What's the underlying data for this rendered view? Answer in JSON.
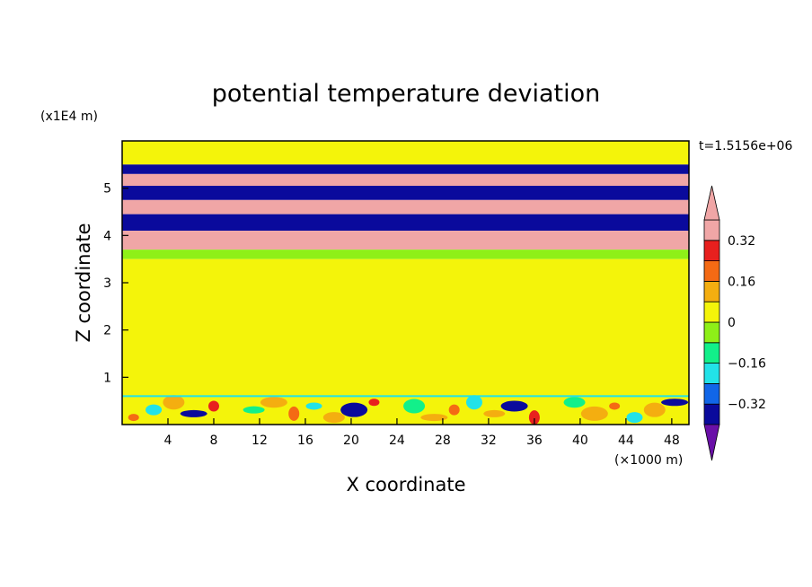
{
  "chart_data": {
    "type": "heatmap",
    "title": "potential temperature deviation",
    "xlabel": "X coordinate",
    "ylabel": "Z coordinate",
    "x_unit": "(×1000 m)",
    "y_unit": "(x1E4 m)",
    "time_label": "t=1.5156e+06",
    "xlim": [
      0,
      49.5
    ],
    "ylim": [
      0,
      6
    ],
    "x_ticks": [
      4,
      8,
      12,
      16,
      20,
      24,
      28,
      32,
      36,
      40,
      44,
      48
    ],
    "y_ticks": [
      1,
      2,
      3,
      4,
      5
    ],
    "colorbar": {
      "levels": [
        -0.4,
        -0.32,
        -0.24,
        -0.16,
        -0.08,
        0,
        0.08,
        0.16,
        0.24,
        0.32,
        0.4
      ],
      "colors": [
        "#4b0f94",
        "#0a0a9c",
        "#1166e8",
        "#22e2e8",
        "#12f08a",
        "#8ef018",
        "#f4f40a",
        "#f4ae10",
        "#f46a14",
        "#e8201e",
        "#f0a6a6",
        "#6a10a8"
      ],
      "labels": [
        "0.32",
        "0.16",
        "0",
        "−0.16",
        "−0.32"
      ],
      "label_values": [
        0.32,
        0.16,
        0,
        -0.16,
        -0.32
      ]
    },
    "field_bands": [
      {
        "z": [
          5.5,
          6.0
        ],
        "value": 0.04
      },
      {
        "z": [
          5.3,
          5.5
        ],
        "value": -0.36
      },
      {
        "z": [
          5.05,
          5.3
        ],
        "value": 0.36
      },
      {
        "z": [
          4.75,
          5.05
        ],
        "value": -0.36
      },
      {
        "z": [
          4.45,
          4.75
        ],
        "value": 0.36
      },
      {
        "z": [
          4.1,
          4.45
        ],
        "value": -0.36
      },
      {
        "z": [
          3.7,
          4.1
        ],
        "value": 0.36
      },
      {
        "z": [
          3.5,
          3.7
        ],
        "value": -0.05
      },
      {
        "z": [
          0.6,
          3.5
        ],
        "value": 0.04
      },
      {
        "z": [
          0.0,
          0.6
        ],
        "value": 0.0
      }
    ]
  }
}
